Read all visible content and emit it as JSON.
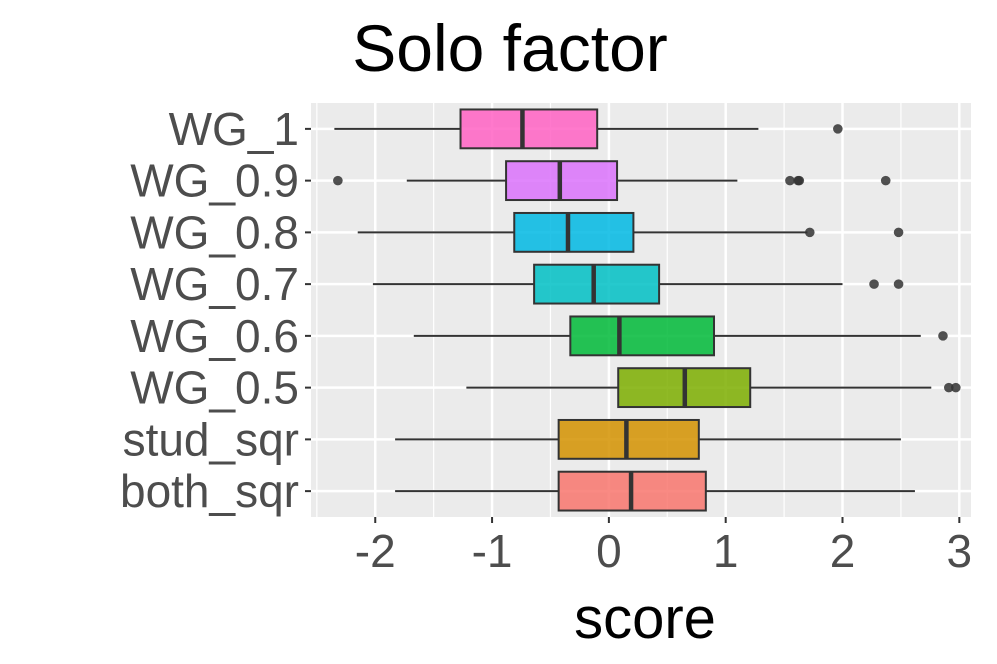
{
  "chart_data": {
    "type": "boxplot",
    "orientation": "horizontal",
    "title": "Solo factor",
    "xlabel": "score",
    "ylabel": "",
    "xlim": [
      -2.55,
      3.1
    ],
    "xticks": [
      -2,
      -1,
      0,
      1,
      2,
      3
    ],
    "xtick_labels": [
      "-2",
      "-1",
      "0",
      "1",
      "2",
      "3"
    ],
    "grid": true,
    "legend": "none",
    "series": [
      {
        "name": "WG_1",
        "color": "#FF61C3",
        "whisker_low": -2.35,
        "q1": -1.27,
        "median": -0.74,
        "q3": -0.1,
        "whisker_high": 1.28,
        "outliers": [
          1.96
        ]
      },
      {
        "name": "WG_0.9",
        "color": "#DB72FB",
        "whisker_low": -1.73,
        "q1": -0.88,
        "median": -0.42,
        "q3": 0.07,
        "whisker_high": 1.1,
        "outliers": [
          -2.32,
          1.55,
          1.62,
          1.63,
          2.37
        ]
      },
      {
        "name": "WG_0.8",
        "color": "#00B9E3",
        "whisker_low": -2.15,
        "q1": -0.81,
        "median": -0.35,
        "q3": 0.21,
        "whisker_high": 1.7,
        "outliers": [
          1.72,
          2.48
        ]
      },
      {
        "name": "WG_0.7",
        "color": "#00BFC4",
        "whisker_low": -2.02,
        "q1": -0.64,
        "median": -0.13,
        "q3": 0.43,
        "whisker_high": 2.0,
        "outliers": [
          2.27,
          2.48
        ]
      },
      {
        "name": "WG_0.6",
        "color": "#00BA38",
        "whisker_low": -1.67,
        "q1": -0.33,
        "median": 0.09,
        "q3": 0.9,
        "whisker_high": 2.67,
        "outliers": [
          2.86
        ]
      },
      {
        "name": "WG_0.5",
        "color": "#7CAE00",
        "whisker_low": -1.22,
        "q1": 0.08,
        "median": 0.65,
        "q3": 1.21,
        "whisker_high": 2.76,
        "outliers": [
          2.91,
          2.97
        ]
      },
      {
        "name": "stud_sqr",
        "color": "#D39200",
        "whisker_low": -1.83,
        "q1": -0.43,
        "median": 0.15,
        "q3": 0.77,
        "whisker_high": 2.5,
        "outliers": []
      },
      {
        "name": "both_sqr",
        "color": "#F8766D",
        "whisker_low": -1.83,
        "q1": -0.43,
        "median": 0.19,
        "q3": 0.83,
        "whisker_high": 2.62,
        "outliers": []
      }
    ]
  }
}
